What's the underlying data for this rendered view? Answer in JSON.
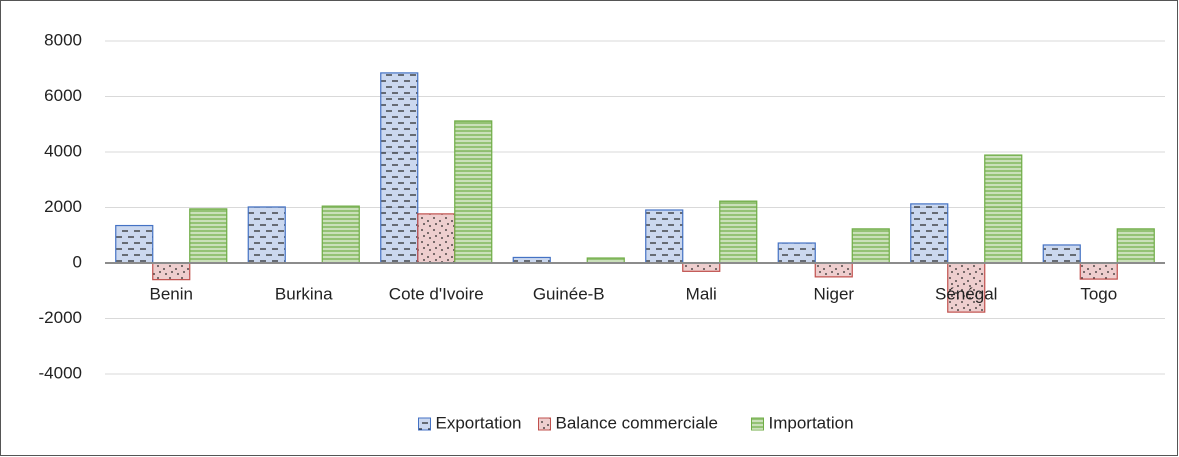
{
  "chart_data": {
    "type": "bar",
    "categories": [
      "Benin",
      "Burkina",
      "Cote d'Ivoire",
      "Guinée-B",
      "Mali",
      "Niger",
      "Sénégal",
      "Togo"
    ],
    "series": [
      {
        "name": "Exportation",
        "color": "#4472c4",
        "values": [
          1350,
          2020,
          6850,
          200,
          1910,
          720,
          2130,
          650
        ]
      },
      {
        "name": "Balance commerciale",
        "color": "#c0504d",
        "values": [
          -600,
          0,
          1770,
          0,
          -300,
          -500,
          -1770,
          -580
        ]
      },
      {
        "name": "Importation",
        "color": "#70ad47",
        "values": [
          1950,
          2050,
          5120,
          180,
          2230,
          1230,
          3890,
          1230
        ]
      }
    ],
    "ylim": [
      -4000,
      8000
    ],
    "yticks": [
      -4000,
      -2000,
      0,
      2000,
      4000,
      6000,
      8000
    ],
    "grid": true,
    "legend": "bottom"
  }
}
